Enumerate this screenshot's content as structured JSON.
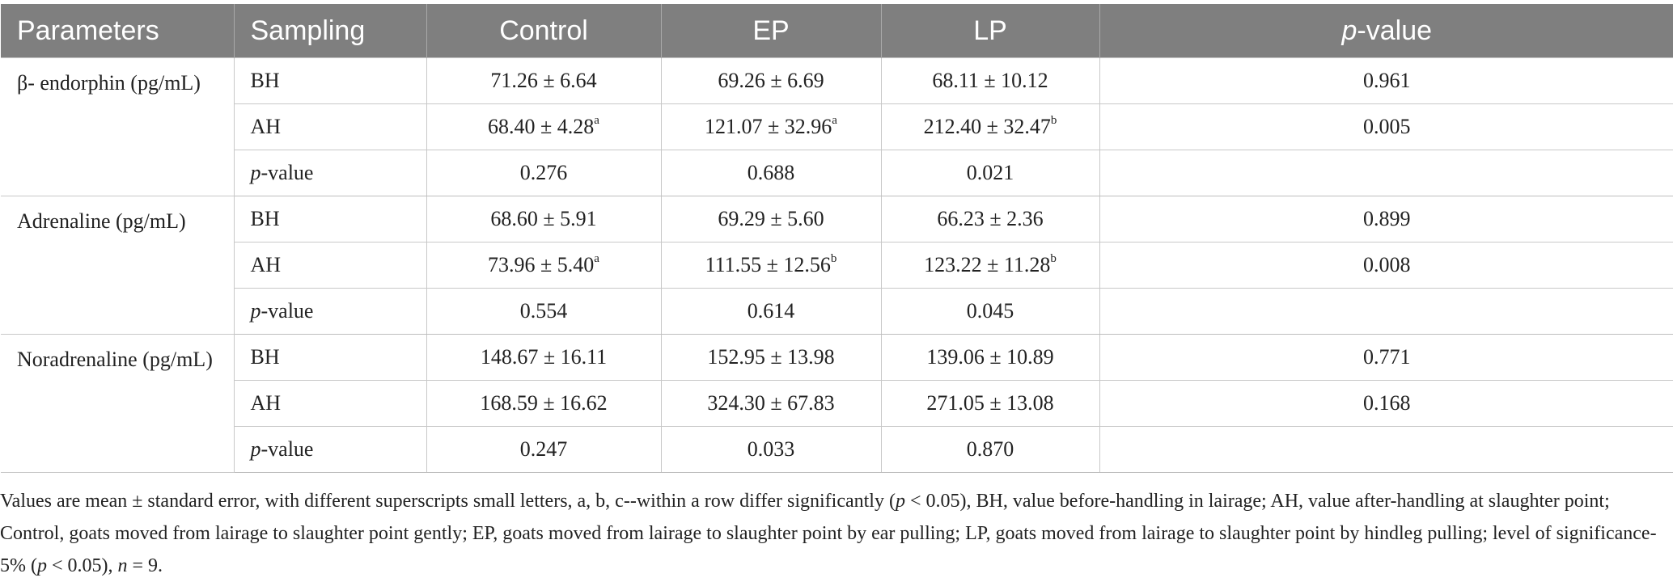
{
  "table": {
    "headers": [
      "Parameters",
      "Sampling",
      "Control",
      "EP",
      "LP",
      "p-value"
    ],
    "p_header_italic": "p",
    "p_header_rest": "-value",
    "sampling_p_italic": "p",
    "sampling_p_rest": "-value",
    "groups": [
      {
        "parameter": "β- endorphin (pg/mL)",
        "rows": [
          {
            "sampling": "BH",
            "control": "71.26 ± 6.64",
            "control_sup": "",
            "ep": "69.26 ± 6.69",
            "ep_sup": "",
            "lp": "68.11 ± 10.12",
            "lp_sup": "",
            "p": "0.961"
          },
          {
            "sampling": "AH",
            "control": "68.40 ± 4.28",
            "control_sup": "a",
            "ep": "121.07 ± 32.96",
            "ep_sup": "a",
            "lp": "212.40 ± 32.47",
            "lp_sup": "b",
            "p": "0.005"
          },
          {
            "sampling": "p-value",
            "control": "0.276",
            "control_sup": "",
            "ep": "0.688",
            "ep_sup": "",
            "lp": "0.021",
            "lp_sup": "",
            "p": ""
          }
        ]
      },
      {
        "parameter": "Adrenaline (pg/mL)",
        "rows": [
          {
            "sampling": "BH",
            "control": "68.60 ± 5.91",
            "control_sup": "",
            "ep": "69.29 ± 5.60",
            "ep_sup": "",
            "lp": "66.23 ± 2.36",
            "lp_sup": "",
            "p": "0.899"
          },
          {
            "sampling": "AH",
            "control": "73.96 ± 5.40",
            "control_sup": "a",
            "ep": "111.55 ± 12.56",
            "ep_sup": "b",
            "lp": "123.22 ± 11.28",
            "lp_sup": "b",
            "p": "0.008"
          },
          {
            "sampling": "p-value",
            "control": "0.554",
            "control_sup": "",
            "ep": "0.614",
            "ep_sup": "",
            "lp": "0.045",
            "lp_sup": "",
            "p": ""
          }
        ]
      },
      {
        "parameter": "Noradrenaline (pg/mL)",
        "rows": [
          {
            "sampling": "BH",
            "control": "148.67 ± 16.11",
            "control_sup": "",
            "ep": "152.95 ± 13.98",
            "ep_sup": "",
            "lp": "139.06 ± 10.89",
            "lp_sup": "",
            "p": "0.771"
          },
          {
            "sampling": "AH",
            "control": "168.59 ± 16.62",
            "control_sup": "",
            "ep": "324.30 ± 67.83",
            "ep_sup": "",
            "lp": "271.05 ± 13.08",
            "lp_sup": "",
            "p": "0.168"
          },
          {
            "sampling": "p-value",
            "control": "0.247",
            "control_sup": "",
            "ep": "0.033",
            "ep_sup": "",
            "lp": "0.870",
            "lp_sup": "",
            "p": ""
          }
        ]
      }
    ]
  },
  "footnote": {
    "part1": "Values are mean ± standard error, with different superscripts small letters, a, b, c--within a row differ significantly (",
    "p1": "p",
    "part2": " < 0.05), BH, value before-handling in lairage; AH, value after-handling at slaughter point; Control, goats moved from lairage to slaughter point gently; EP, goats moved from lairage to slaughter point by ear pulling; LP, goats moved from lairage to slaughter point by hindleg pulling; level of significance- 5% (",
    "p2": "p",
    "part3": " < 0.05), ",
    "n": "n",
    "part4": " = 9."
  },
  "colors": {
    "header_bg": "#7f7f7f",
    "header_text": "#ffffff",
    "grid": "#c8c8c8"
  }
}
